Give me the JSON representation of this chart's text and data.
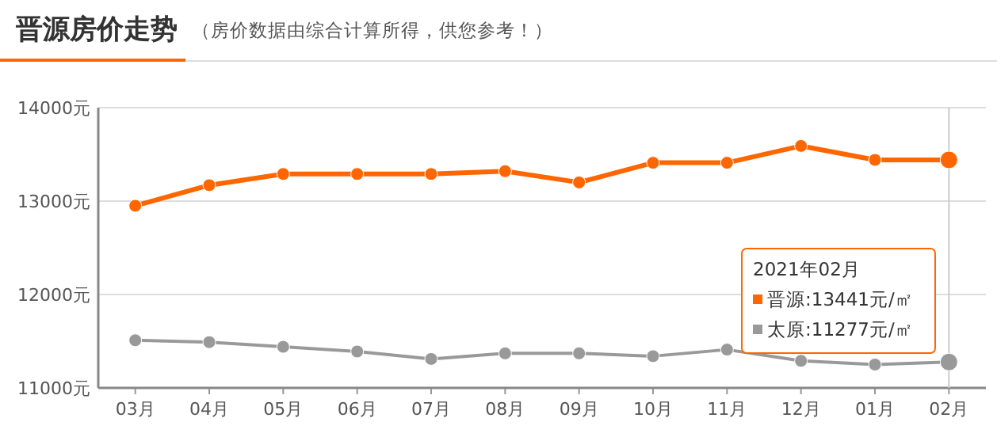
{
  "chart_data": {
    "type": "line",
    "title": "晋源房价走势",
    "subtitle": "（房价数据由综合计算所得，供您参考！）",
    "categories": [
      "03月",
      "04月",
      "05月",
      "06月",
      "07月",
      "08月",
      "09月",
      "10月",
      "11月",
      "12月",
      "01月",
      "02月"
    ],
    "series": [
      {
        "color": "#ff6600",
        "values": [
          12950,
          13170,
          13290,
          13290,
          13290,
          13320,
          13200,
          13410,
          13410,
          13590,
          13441,
          13441
        ]
      },
      {
        "color": "#999999",
        "values": [
          11510,
          11490,
          11440,
          11390,
          11310,
          11370,
          11370,
          11340,
          11410,
          11290,
          11250,
          11277
        ]
      }
    ],
    "ylim": [
      11000,
      14000
    ],
    "yticks": [
      {
        "value": 11000,
        "label": "11000元"
      },
      {
        "value": 12000,
        "label": "12000元"
      },
      {
        "value": 13000,
        "label": "13000元"
      },
      {
        "value": 14000,
        "label": "14000元"
      }
    ],
    "grid": "y",
    "marker": "circle",
    "line_style": "solid",
    "annotations": [
      "2021年02月",
      "晋源:13441元/㎡",
      "太原:11277元/㎡"
    ],
    "ref_lines": [
      {
        "axis": "x",
        "value": "02月",
        "color": "#cccccc"
      }
    ]
  }
}
